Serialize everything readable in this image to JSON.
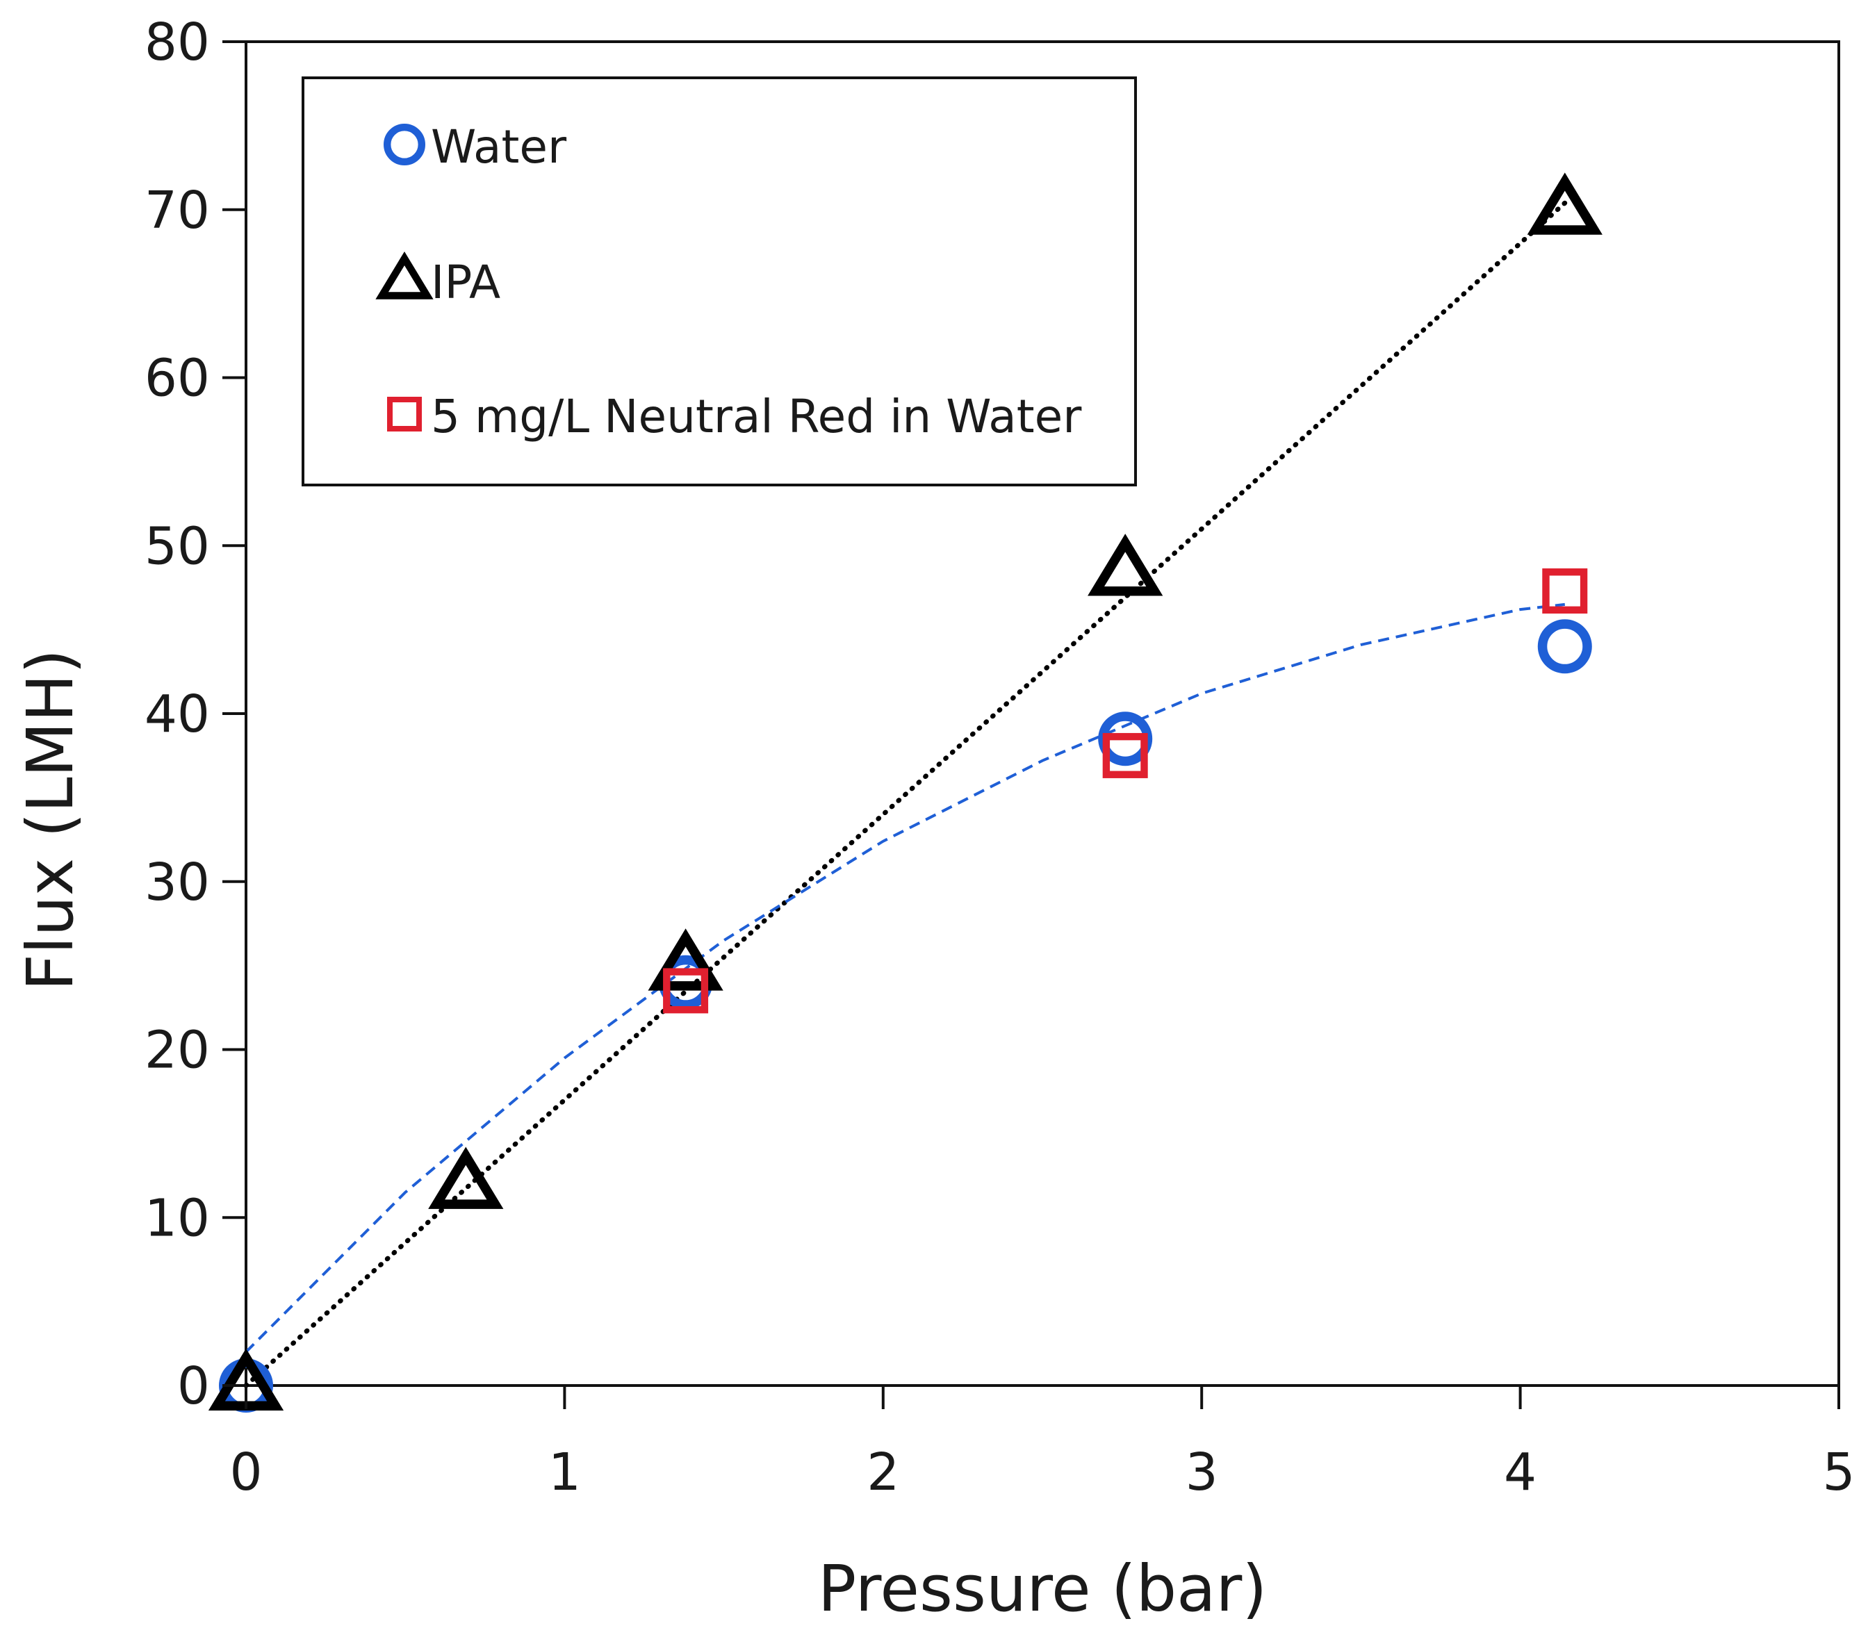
{
  "chart_data": {
    "type": "scatter",
    "title": "",
    "xlabel": "Pressure (bar)",
    "ylabel": "Flux (LMH)",
    "xlim": [
      0,
      5
    ],
    "ylim": [
      0,
      80
    ],
    "xticks": [
      0,
      1,
      2,
      3,
      4,
      5
    ],
    "yticks": [
      0,
      10,
      20,
      30,
      40,
      50,
      60,
      70,
      80
    ],
    "grid": false,
    "legend_position": "top-left",
    "series": [
      {
        "name": "Water",
        "marker": "circle",
        "color": "#1f5fd6",
        "x": [
          0,
          1.38,
          2.76,
          4.14
        ],
        "y": [
          0,
          24,
          38.5,
          44
        ]
      },
      {
        "name": "IPA",
        "marker": "triangle",
        "color": "#000000",
        "x": [
          0,
          0.69,
          1.38,
          2.76,
          4.14
        ],
        "y": [
          0,
          12,
          25,
          48.5,
          70
        ]
      },
      {
        "name": "5 mg/L Neutral Red in Water",
        "marker": "square",
        "color": "#e0202f",
        "x": [
          1.38,
          2.76,
          4.14
        ],
        "y": [
          23.5,
          37.5,
          47.3
        ]
      }
    ],
    "trendlines": [
      {
        "name": "IPA linear fit",
        "style": "dotted",
        "color": "#000000",
        "x": [
          0,
          0.5,
          1,
          1.5,
          2,
          2.5,
          3,
          3.5,
          4,
          4.14
        ],
        "y": [
          0,
          8.5,
          17,
          25.5,
          34,
          42.5,
          51,
          59.5,
          68,
          70.4
        ]
      },
      {
        "name": "Water fit",
        "style": "dashed",
        "color": "#1f5fd6",
        "x": [
          0,
          0.5,
          1,
          1.5,
          2,
          2.5,
          3,
          3.5,
          4,
          4.14
        ],
        "y": [
          2,
          11.5,
          19.5,
          26.5,
          32.4,
          37.2,
          41.2,
          44.1,
          46.2,
          46.5
        ]
      }
    ]
  }
}
